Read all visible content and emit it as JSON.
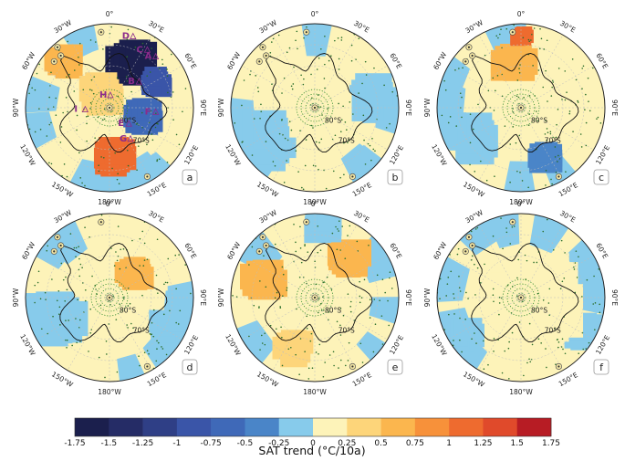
{
  "chart_data": {
    "type": "heatmap",
    "description_of_content": "",
    "panels": [
      {
        "id": "a",
        "label": "a",
        "site_letters": [
          "D",
          "A",
          "C",
          "B",
          "H",
          "I",
          "F",
          "E",
          "G"
        ],
        "blobs": [
          {
            "cx": 0.3,
            "cy": -0.55,
            "r": 0.34,
            "level": -1.75
          },
          {
            "cx": 0.55,
            "cy": -0.3,
            "r": 0.22,
            "level": -1.0
          },
          {
            "cx": 0.42,
            "cy": 0.1,
            "r": 0.25,
            "level": -0.75
          },
          {
            "cx": 0.05,
            "cy": 0.6,
            "r": 0.3,
            "level": 1.0
          },
          {
            "cx": -0.55,
            "cy": -0.55,
            "r": 0.25,
            "level": 0.5
          },
          {
            "cx": -0.1,
            "cy": -0.15,
            "r": 0.3,
            "level": 0.25
          }
        ]
      },
      {
        "id": "b",
        "label": "b",
        "site_letters": [],
        "blobs": [
          {
            "cx": -0.6,
            "cy": 0.4,
            "r": 0.45,
            "level": -0.25
          },
          {
            "cx": 0.7,
            "cy": -0.1,
            "r": 0.35,
            "level": -0.25
          },
          {
            "cx": 0.1,
            "cy": 0.0,
            "r": 0.45,
            "level": 0.0
          }
        ]
      },
      {
        "id": "c",
        "label": "c",
        "site_letters": [],
        "blobs": [
          {
            "cx": -0.1,
            "cy": -0.55,
            "r": 0.3,
            "level": 0.5
          },
          {
            "cx": 0.0,
            "cy": -0.85,
            "r": 0.15,
            "level": 1.0
          },
          {
            "cx": 0.3,
            "cy": 0.6,
            "r": 0.22,
            "level": -0.5
          },
          {
            "cx": -0.55,
            "cy": 0.35,
            "r": 0.35,
            "level": -0.25
          }
        ]
      },
      {
        "id": "d",
        "label": "d",
        "site_letters": [],
        "blobs": [
          {
            "cx": 0.3,
            "cy": -0.3,
            "r": 0.25,
            "level": 0.5
          },
          {
            "cx": -0.65,
            "cy": 0.25,
            "r": 0.45,
            "level": -0.25
          },
          {
            "cx": 0.7,
            "cy": 0.35,
            "r": 0.25,
            "level": -0.25
          }
        ]
      },
      {
        "id": "e",
        "label": "e",
        "site_letters": [],
        "blobs": [
          {
            "cx": -0.6,
            "cy": -0.25,
            "r": 0.3,
            "level": 0.5
          },
          {
            "cx": 0.4,
            "cy": -0.45,
            "r": 0.3,
            "level": 0.5
          },
          {
            "cx": -0.25,
            "cy": 0.6,
            "r": 0.25,
            "level": 0.25
          },
          {
            "cx": 0.1,
            "cy": -0.85,
            "r": 0.25,
            "level": -0.25
          }
        ]
      },
      {
        "id": "f",
        "label": "f",
        "site_letters": [],
        "blobs": [
          {
            "cx": -0.7,
            "cy": 0.45,
            "r": 0.3,
            "level": -0.25
          },
          {
            "cx": 0.75,
            "cy": 0.4,
            "r": 0.25,
            "level": -0.25
          },
          {
            "cx": 0.2,
            "cy": 0.0,
            "r": 0.6,
            "level": 0.0
          }
        ]
      }
    ],
    "longitude_labels": [
      "0°",
      "30°E",
      "60°E",
      "90°E",
      "120°E",
      "150°E",
      "180°W",
      "150°W",
      "120°W",
      "90°W",
      "60°W",
      "30°W"
    ],
    "latitude_labels": [
      "80°S",
      "70°S"
    ],
    "colorbar": {
      "label": "SAT trend (°C/10a)",
      "ticks": [
        "-1.75",
        "-1.5",
        "-1.25",
        "-1",
        "-0.75",
        "-0.5",
        "-0.25",
        "0",
        "0.25",
        "0.5",
        "0.75",
        "1",
        "1.25",
        "1.5",
        "1.75"
      ],
      "colors": [
        "#1b1f4d",
        "#252c66",
        "#2f3f86",
        "#3a55a8",
        "#3f69b8",
        "#4a85c8",
        "#87cbeb",
        "#fdf3b9",
        "#fdd57a",
        "#fbb64e",
        "#f7913a",
        "#ee6b2f",
        "#e04a2b",
        "#b71c24"
      ]
    }
  }
}
